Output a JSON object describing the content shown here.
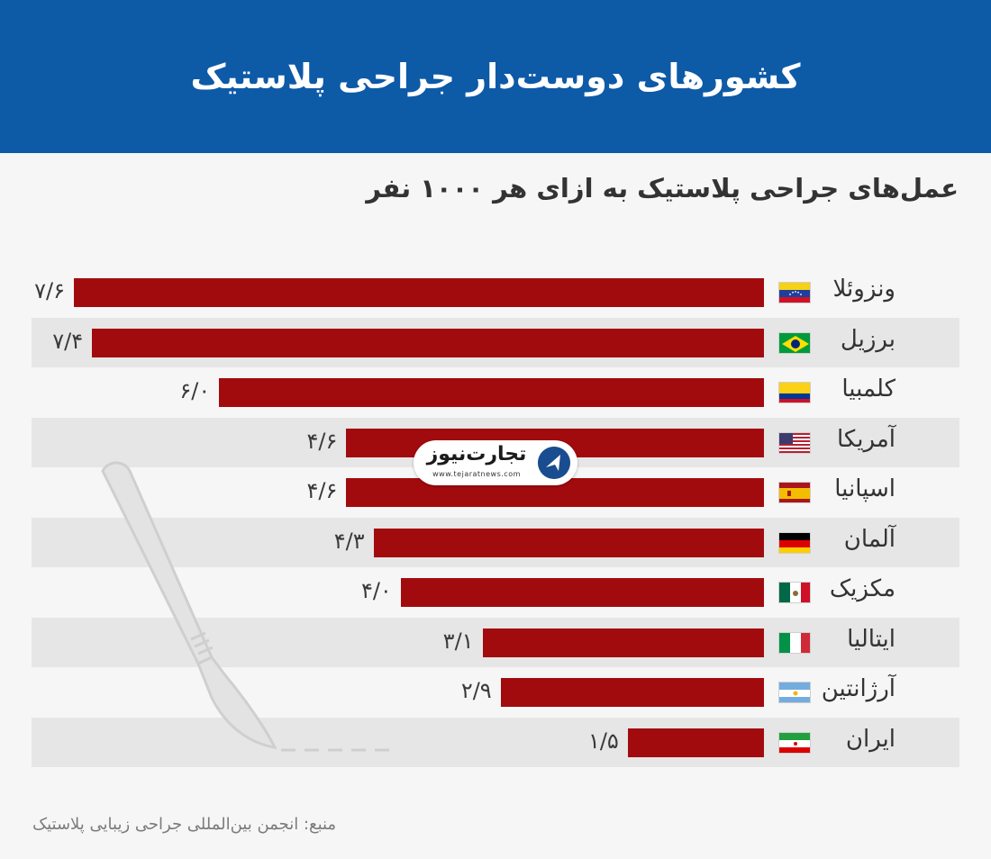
{
  "header": {
    "title": "کشورهای دوست‌دار جراحی پلاستیک"
  },
  "subtitle": "عمل‌های جراحی پلاستیک به ازای هر ۱۰۰۰ نفر",
  "source": "منبع: انجمن بین‌المللی جراحی زیبایی پلاستیک",
  "logo": {
    "name": "تجارت‌نیوز",
    "url": "www.tejaratnews.com",
    "icon": "tejarat-news-logo-icon"
  },
  "colors": {
    "header_bg": "#0d5aa7",
    "bar": "#a20b0e",
    "row_shade": "#e6e6e6",
    "background": "#f6f6f6"
  },
  "chart_data": {
    "type": "bar",
    "orientation": "horizontal",
    "categories": [
      "ونزوئلا",
      "برزیل",
      "کلمبیا",
      "آمریکا",
      "اسپانیا",
      "آلمان",
      "مکزیک",
      "ایتالیا",
      "آرژانتین",
      "ایران"
    ],
    "values": [
      7.6,
      7.4,
      6.0,
      4.6,
      4.6,
      4.3,
      4.0,
      3.1,
      2.9,
      1.5
    ],
    "value_labels": [
      "۷/۶",
      "۷/۴",
      "۶/۰",
      "۴/۶",
      "۴/۶",
      "۴/۳",
      "۴/۰",
      "۳/۱",
      "۲/۹",
      "۱/۵"
    ],
    "flags": [
      "venezuela-flag-icon",
      "brazil-flag-icon",
      "colombia-flag-icon",
      "usa-flag-icon",
      "spain-flag-icon",
      "germany-flag-icon",
      "mexico-flag-icon",
      "italy-flag-icon",
      "argentina-flag-icon",
      "iran-flag-icon"
    ],
    "xlim": [
      0,
      8
    ],
    "grid": false,
    "legend": "none"
  }
}
